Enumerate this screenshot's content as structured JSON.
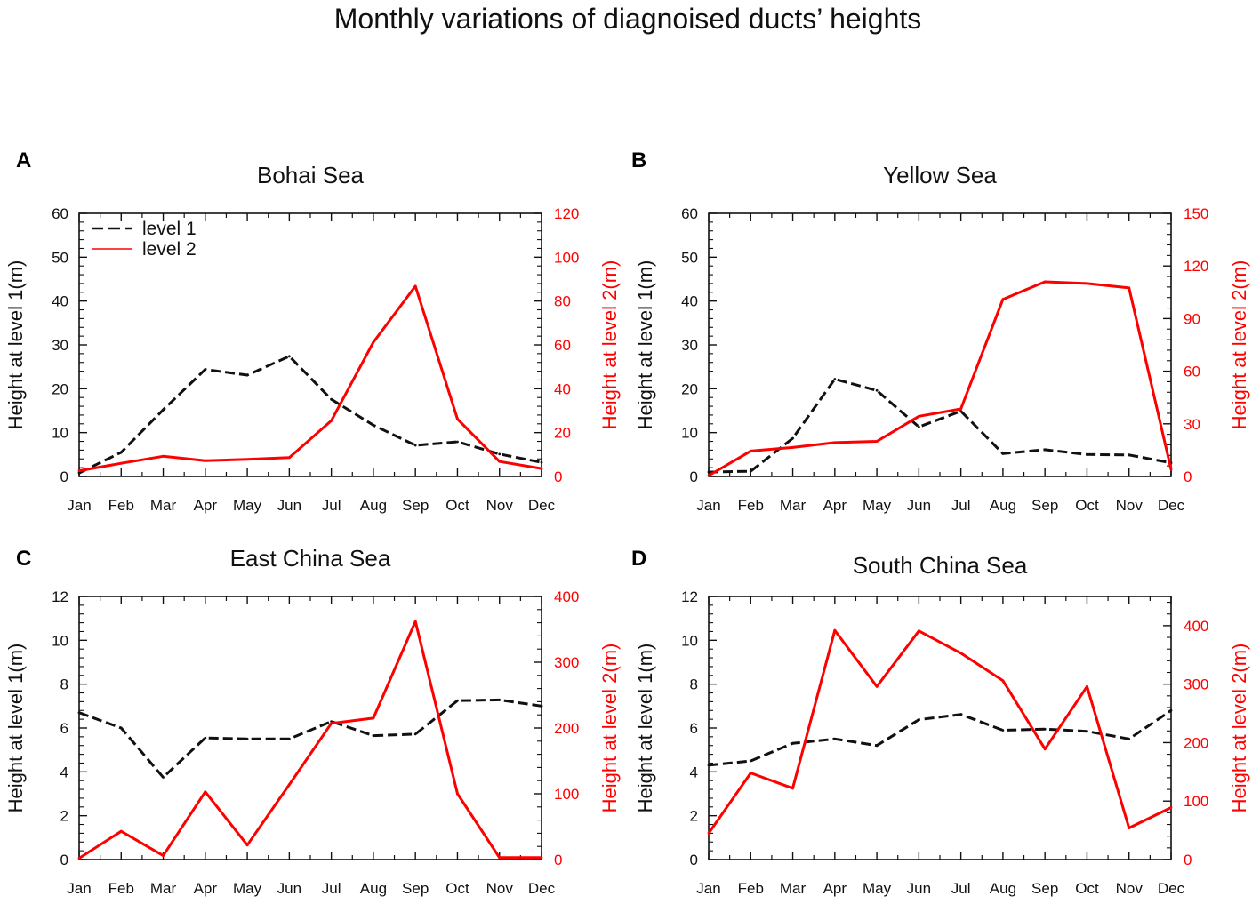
{
  "title": "Monthly variations of diagnoised ducts’ heights",
  "colors": {
    "level1": "#111111",
    "level2": "#ff0000",
    "axis": "#111111"
  },
  "legend": {
    "level1": "level 1",
    "level2": "level 2"
  },
  "chart_data": [
    {
      "id": "A",
      "letter": "A",
      "type": "line",
      "title": "Bohai Sea",
      "categories": [
        "Jan",
        "Feb",
        "Mar",
        "Apr",
        "May",
        "Jun",
        "Jul",
        "Aug",
        "Sep",
        "Oct",
        "Nov",
        "Dec"
      ],
      "ylabel_left": "Height at level 1(m)",
      "ylabel_right": "Height at level 2(m)",
      "ylim_left": [
        0,
        60
      ],
      "yticks_left": [
        0,
        10,
        20,
        30,
        40,
        50,
        60
      ],
      "ylim_right": [
        0,
        120
      ],
      "yticks_right": [
        0,
        20,
        40,
        60,
        80,
        100,
        120
      ],
      "legend_position": "top-left",
      "series": [
        {
          "name": "level 1",
          "axis": "left",
          "style": "dashed",
          "values": [
            0.8,
            5.5,
            15.2,
            24.4,
            23.1,
            27.4,
            17.6,
            11.7,
            7.1,
            7.9,
            5.1,
            3.2
          ]
        },
        {
          "name": "level 2",
          "axis": "right",
          "style": "solid",
          "values": [
            2.6,
            6.0,
            9.2,
            7.2,
            7.8,
            8.6,
            25.4,
            61.2,
            86.8,
            26.2,
            6.8,
            3.6
          ]
        }
      ]
    },
    {
      "id": "B",
      "letter": "B",
      "type": "line",
      "title": "Yellow Sea",
      "categories": [
        "Jan",
        "Feb",
        "Mar",
        "Apr",
        "May",
        "Jun",
        "Jul",
        "Aug",
        "Sep",
        "Oct",
        "Nov",
        "Dec"
      ],
      "ylabel_left": "Height at level 1(m)",
      "ylabel_right": "Height at level 2(m)",
      "ylim_left": [
        0,
        60
      ],
      "yticks_left": [
        0,
        10,
        20,
        30,
        40,
        50,
        60
      ],
      "ylim_right": [
        0,
        150
      ],
      "yticks_right": [
        0,
        30,
        60,
        90,
        120,
        150
      ],
      "series": [
        {
          "name": "level 1",
          "axis": "left",
          "style": "dashed",
          "values": [
            1.0,
            1.2,
            8.7,
            22.2,
            19.6,
            11.3,
            14.9,
            5.2,
            6.1,
            5.0,
            4.9,
            3.1
          ]
        },
        {
          "name": "level 2",
          "axis": "right",
          "style": "solid",
          "values": [
            0.5,
            14.5,
            16.5,
            19.3,
            20.0,
            34.3,
            38.5,
            101.0,
            111.0,
            110.0,
            107.5,
            4.0
          ]
        }
      ]
    },
    {
      "id": "C",
      "letter": "C",
      "type": "line",
      "title": "East China Sea",
      "categories": [
        "Jan",
        "Feb",
        "Mar",
        "Apr",
        "May",
        "Jun",
        "Jul",
        "Aug",
        "Sep",
        "Oct",
        "Nov",
        "Dec"
      ],
      "ylabel_left": "Height at level 1(m)",
      "ylabel_right": "Height at level 2(m)",
      "ylim_left": [
        0,
        12
      ],
      "yticks_left": [
        0,
        2,
        4,
        6,
        8,
        10,
        12
      ],
      "ylim_right": [
        0,
        400
      ],
      "yticks_right": [
        0,
        100,
        200,
        300,
        400
      ],
      "series": [
        {
          "name": "level 1",
          "axis": "left",
          "style": "dashed",
          "values": [
            6.7,
            6.0,
            3.75,
            5.55,
            5.5,
            5.5,
            6.3,
            5.65,
            5.72,
            7.25,
            7.28,
            7.0
          ]
        },
        {
          "name": "level 2",
          "axis": "right",
          "style": "solid",
          "values": [
            2,
            43,
            6,
            103,
            22,
            114,
            207,
            215,
            362,
            100,
            3,
            3
          ]
        }
      ]
    },
    {
      "id": "D",
      "letter": "D",
      "type": "line",
      "title": "South China Sea",
      "categories": [
        "Jan",
        "Feb",
        "Mar",
        "Apr",
        "May",
        "Jun",
        "Jul",
        "Aug",
        "Sep",
        "Oct",
        "Nov",
        "Dec"
      ],
      "ylabel_left": "Height at level 1(m)",
      "ylabel_right": "Height at level 2(m)",
      "ylim_left": [
        0,
        12
      ],
      "yticks_left": [
        0,
        2,
        4,
        6,
        8,
        10,
        12
      ],
      "ylim_right": [
        0,
        450
      ],
      "yticks_right": [
        0,
        100,
        200,
        300,
        400
      ],
      "series": [
        {
          "name": "level 1",
          "axis": "left",
          "style": "dashed",
          "values": [
            4.3,
            4.5,
            5.3,
            5.5,
            5.2,
            6.38,
            6.62,
            5.9,
            5.95,
            5.85,
            5.5,
            6.8
          ]
        },
        {
          "name": "level 2",
          "axis": "right",
          "style": "solid",
          "values": [
            45,
            148,
            122,
            392,
            296,
            391,
            353,
            306,
            189,
            296,
            54,
            89
          ]
        }
      ]
    }
  ]
}
